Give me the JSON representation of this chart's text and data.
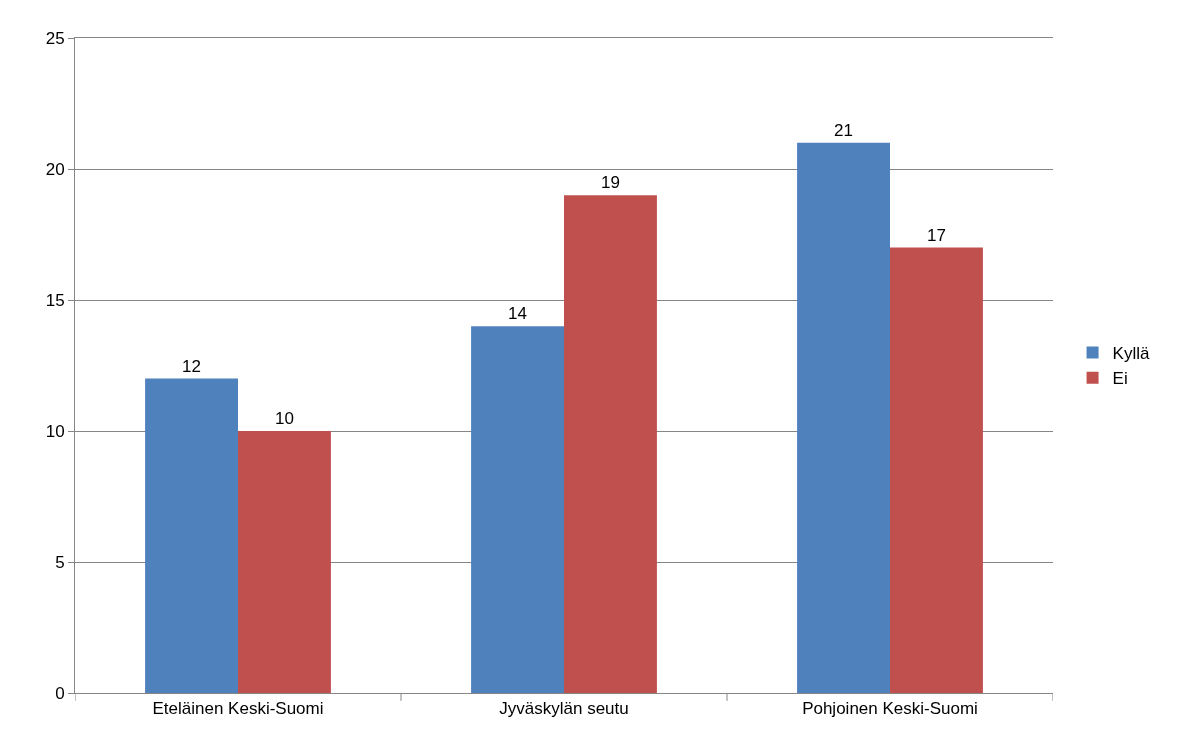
{
  "chart_data": {
    "type": "bar",
    "categories": [
      "Eteläinen Keski-Suomi",
      "Jyväskylän seutu",
      "Pohjoinen Keski-Suomi"
    ],
    "series": [
      {
        "name": "Kyllä",
        "color": "#4f81bd",
        "values": [
          12,
          14,
          21
        ]
      },
      {
        "name": "Ei",
        "color": "#c0504d",
        "values": [
          10,
          19,
          17
        ]
      }
    ],
    "ylim": [
      0,
      25
    ],
    "yticks": [
      0,
      5,
      10,
      15,
      20,
      25
    ],
    "grid": "y",
    "legend": "right",
    "data_labels": true
  }
}
